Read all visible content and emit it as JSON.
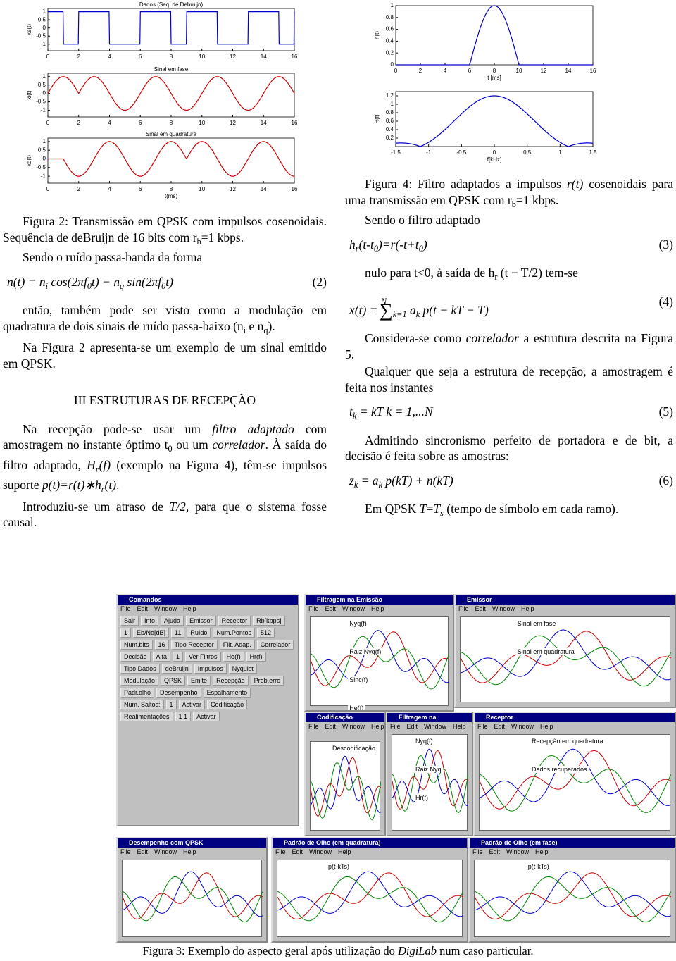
{
  "figure2": {
    "plots": [
      {
        "title": "Dados (Seq. de Debruijn)",
        "ylabel": "xe(t)",
        "xlim": [
          0,
          16
        ],
        "ylim": [
          -1.4,
          1.2
        ],
        "yticks": [
          1,
          0.5,
          0,
          -0.5,
          -1
        ],
        "xticks": [
          0,
          2,
          4,
          6,
          8,
          10,
          12,
          14,
          16
        ],
        "color": "#0000cc",
        "kind": "square"
      },
      {
        "title": "Sinal em fase",
        "ylabel": "xi(t)",
        "xlim": [
          0,
          16
        ],
        "ylim": [
          -1.4,
          1.2
        ],
        "yticks": [
          1,
          0.5,
          0,
          -0.5,
          -1
        ],
        "xticks": [
          0,
          2,
          4,
          6,
          8,
          10,
          12,
          14,
          16
        ],
        "color": "#cc0000",
        "kind": "cos"
      },
      {
        "title": "Sinal em quadratura",
        "ylabel": "xq(t)",
        "xlabel": "t(ms)",
        "xlim": [
          0,
          16
        ],
        "ylim": [
          -1.4,
          1.2
        ],
        "yticks": [
          1,
          0.5,
          0,
          -0.5,
          -1
        ],
        "xticks": [
          0,
          2,
          4,
          6,
          8,
          10,
          12,
          14,
          16
        ],
        "color": "#cc0000",
        "kind": "cosq"
      }
    ]
  },
  "figure4": {
    "plots": [
      {
        "ylabel": "h(t)",
        "xlabel": "t [ms]",
        "xlim": [
          0,
          16
        ],
        "ylim": [
          0,
          1
        ],
        "yticks": [
          0,
          0.2,
          0.4,
          0.6,
          0.8,
          1
        ],
        "xticks": [
          0,
          2,
          4,
          6,
          8,
          10,
          12,
          14,
          16
        ],
        "color": "#0000cc",
        "kind": "pulse"
      },
      {
        "ylabel": "H(f)",
        "xlabel": "f[kHz]",
        "xlim": [
          -1.5,
          1.5
        ],
        "ylim": [
          0,
          1.3
        ],
        "yticks": [
          0.2,
          0.4,
          0.6,
          0.8,
          1,
          1.2
        ],
        "xticks": [
          -1.5,
          -1,
          -0.5,
          0,
          0.5,
          1,
          1.5
        ],
        "color": "#0000cc",
        "kind": "spec"
      }
    ]
  },
  "left_column": [
    {
      "kind": "caption",
      "runs": [
        "Figura 2: Transmissão em QPSK com impulsos cosenoidais. Sequência de deBruijn de 16 bits com r",
        {
          "text": "b",
          "style": "sub"
        },
        "=1 kbps."
      ]
    },
    {
      "kind": "para",
      "runs": [
        "Sendo o ruído passa-banda da forma"
      ]
    },
    {
      "kind": "eq",
      "runs": [
        "n(t) = n",
        {
          "text": "i",
          "style": "sub"
        },
        " cos(2πf",
        {
          "text": "0",
          "style": "sub"
        },
        "t) − n",
        {
          "text": "q",
          "style": "sub"
        },
        " sin(2πf",
        {
          "text": "0",
          "style": "sub"
        },
        "t)"
      ],
      "number": "(2)"
    },
    {
      "kind": "para",
      "runs": [
        "então, também pode ser visto como a modulação em quadratura de dois sinais de ruído passa-baixo (n",
        {
          "text": "i",
          "style": "sub"
        },
        " e n",
        {
          "text": "q",
          "style": "sub"
        },
        ")."
      ]
    },
    {
      "kind": "para",
      "runs": [
        "Na Figura 2 apresenta-se um exemplo de um sinal emitido em QPSK."
      ]
    },
    {
      "kind": "heading",
      "runs": [
        "III ESTRUTURAS DE RECEPÇÃO"
      ]
    },
    {
      "kind": "para",
      "runs": [
        "Na recepção pode-se usar um ",
        {
          "text": "filtro adaptado",
          "style": "i"
        },
        " com amostragem no instante óptimo t",
        {
          "text": "0",
          "style": "sub"
        },
        " ou um ",
        {
          "text": "correlador",
          "style": "i"
        },
        ". À saída do filtro adaptado, ",
        {
          "text": "H",
          "style": "i"
        },
        {
          "text": "r",
          "style": "isub"
        },
        {
          "text": "(f)",
          "style": "i"
        },
        " (exemplo na Figura 4), têm-se impulsos suporte ",
        {
          "text": "p(t)=r(t)∗h",
          "style": "i"
        },
        {
          "text": "r",
          "style": "isub"
        },
        {
          "text": "(t)",
          "style": "i"
        },
        "."
      ]
    },
    {
      "kind": "para",
      "runs": [
        "Introduziu-se um atraso de ",
        {
          "text": "T/2",
          "style": "i"
        },
        ", para que o sistema fosse causal."
      ]
    }
  ],
  "right_column": [
    {
      "kind": "caption",
      "runs": [
        "Figura 4: Filtro adaptados a impulsos ",
        {
          "text": "r(t)",
          "style": "i"
        },
        " cosenoidais para uma transmissão em QPSK com r",
        {
          "text": "b",
          "style": "sub"
        },
        "=1 kbps."
      ]
    },
    {
      "kind": "para",
      "runs": [
        "Sendo o filtro adaptado"
      ]
    },
    {
      "kind": "eq",
      "runs": [
        "h",
        {
          "text": "r",
          "style": "sub"
        },
        "(t-t",
        {
          "text": "0",
          "style": "sub"
        },
        ")=r(-t+t",
        {
          "text": "0",
          "style": "sub"
        },
        ")"
      ],
      "number": "(3)"
    },
    {
      "kind": "para",
      "runs": [
        "nulo para t<0, à saída de h",
        {
          "text": "r",
          "style": "sub"
        },
        " (t − T/2) tem-se"
      ]
    },
    {
      "kind": "eq",
      "runs": [
        "x(t) = ",
        {
          "text": "N",
          "style": "sup"
        },
        {
          "text": "∑",
          "style": "big"
        },
        {
          "text": "k=1",
          "style": "sub"
        },
        " a",
        {
          "text": "k",
          "style": "sub"
        },
        " p(t − kT − T)"
      ],
      "number": "(4)"
    },
    {
      "kind": "para",
      "runs": [
        "Considera-se como ",
        {
          "text": "correlador",
          "style": "i"
        },
        " a estrutura descrita na Figura 5."
      ]
    },
    {
      "kind": "para",
      "runs": [
        "Qualquer que seja a estrutura de recepção, a amostragem é feita nos instantes"
      ]
    },
    {
      "kind": "eq",
      "runs": [
        "t",
        {
          "text": "k",
          "style": "sub"
        },
        " = kT      k = 1,...N"
      ],
      "number": "(5)"
    },
    {
      "kind": "para",
      "runs": [
        "Admitindo sincronismo perfeito de portadora e de bit, a decisão é feita sobre as amostras:"
      ]
    },
    {
      "kind": "eq",
      "runs": [
        "z",
        {
          "text": "k",
          "style": "sub"
        },
        " = a",
        {
          "text": "k",
          "style": "sub"
        },
        " p(kT) + n(kT)"
      ],
      "number": "(6)"
    },
    {
      "kind": "para",
      "runs": [
        "Em QPSK ",
        {
          "text": "T",
          "style": "i"
        },
        "=",
        {
          "text": "T",
          "style": "i"
        },
        {
          "text": "s",
          "style": "isub"
        },
        " (tempo de símbolo em cada ramo)."
      ]
    }
  ],
  "figure3": {
    "windows": [
      {
        "title": "Comandos",
        "menu": [
          "File",
          "Edit",
          "Window",
          "Help"
        ],
        "labels": [
          "Sair",
          "Info",
          "Ajuda",
          "Emissor",
          "Receptor",
          "Rb[kbps]",
          "1",
          "Eb/No[dB]",
          "11",
          "Ruído",
          "Num.Pontos",
          "512",
          "Num.bits",
          "16",
          "Tipo Receptor",
          "Filt. Adap.",
          "Correlador",
          "Decisão",
          "Alfa",
          "1",
          "Ver Filtros",
          "He(f)",
          "Hr(f)",
          "Tipo Dados",
          "deBruijn",
          "Impulsos",
          "Nyquist",
          "Modulação",
          "QPSK",
          "Emite",
          "Recepção",
          "Prob.erro",
          "Padr.olho",
          "Desempenho",
          "Espalhamento",
          "Num. Saltos:",
          "1",
          "Activar",
          "Codificação",
          "Realimentações",
          "1 1",
          "Activar"
        ]
      },
      {
        "title": "Filtragem na Emissão",
        "menu": [
          "File",
          "Edit",
          "Window",
          "Help"
        ],
        "labels": [
          "Nyq(f)",
          "Raiz Nyq(f)",
          "Sinc(f)",
          "He(f)"
        ]
      },
      {
        "title": "Emissor",
        "menu": [
          "File",
          "Edit",
          "Window",
          "Help"
        ],
        "labels": [
          "Sinal em fase",
          "Sinal em quadratura"
        ]
      },
      {
        "title": "Codificação",
        "menu": [
          "File",
          "Edit",
          "Window",
          "Help"
        ],
        "labels": [
          "Descodificação"
        ]
      },
      {
        "title": "Filtragem na",
        "menu": [
          "File",
          "Edit",
          "Window",
          "Help"
        ],
        "labels": [
          "Nyq(f)",
          "Raiz Nyq",
          "Hr(f)"
        ]
      },
      {
        "title": "Receptor",
        "menu": [
          "File",
          "Edit",
          "Window",
          "Help"
        ],
        "labels": [
          "Recepção em quadratura",
          "Dados recuperados"
        ]
      },
      {
        "title": "Desempenho com QPSK",
        "menu": [
          "File",
          "Edit",
          "Window",
          "Help"
        ],
        "labels": []
      },
      {
        "title": "Padrão de Olho (em quadratura)",
        "menu": [
          "File",
          "Edit",
          "Window",
          "Help"
        ],
        "labels": [
          "p(t-kTs)"
        ]
      },
      {
        "title": "Padrão de Olho (em fase)",
        "menu": [
          "File",
          "Edit",
          "Window",
          "Help"
        ],
        "labels": [
          "p(t-kTs)"
        ]
      }
    ],
    "caption": [
      "Figura 3: Exemplo do aspecto geral após utilização do ",
      {
        "text": "DigiLab",
        "style": "i"
      },
      " num caso particular."
    ]
  }
}
